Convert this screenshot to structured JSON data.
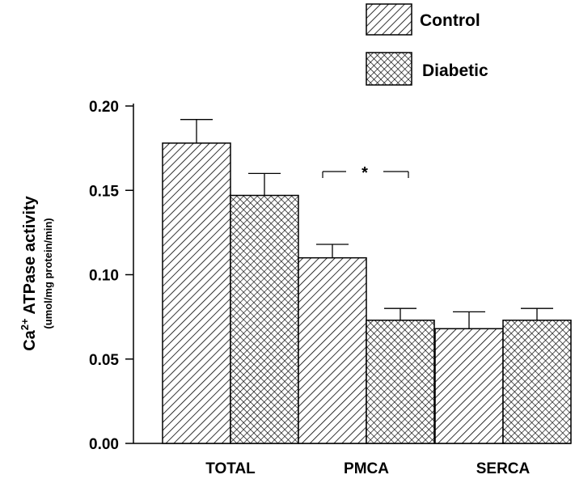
{
  "chart_data": {
    "type": "bar",
    "categories": [
      "TOTAL",
      "PMCA",
      "SERCA"
    ],
    "series": [
      {
        "name": "Control",
        "values": [
          0.178,
          0.11,
          0.068
        ],
        "errors": [
          0.014,
          0.008,
          0.01
        ],
        "pattern": "diagonal-hatch"
      },
      {
        "name": "Diabetic",
        "values": [
          0.147,
          0.073,
          0.073
        ],
        "errors": [
          0.013,
          0.007,
          0.007
        ],
        "pattern": "cross-hatch"
      }
    ],
    "ylabel_main": "Ca",
    "ylabel_sup": "2+",
    "ylabel_rest": " ATPase activity",
    "ylabel_unit": "(umol/mg protein/min)",
    "ylim": [
      0,
      0.2
    ],
    "yticks": [
      "0.00",
      "0.05",
      "0.10",
      "0.15",
      "0.20"
    ],
    "ytick_values": [
      0,
      0.05,
      0.1,
      0.15,
      0.2
    ],
    "legend_position": "top-right",
    "significance": {
      "label": "*",
      "category": "PMCA"
    }
  }
}
